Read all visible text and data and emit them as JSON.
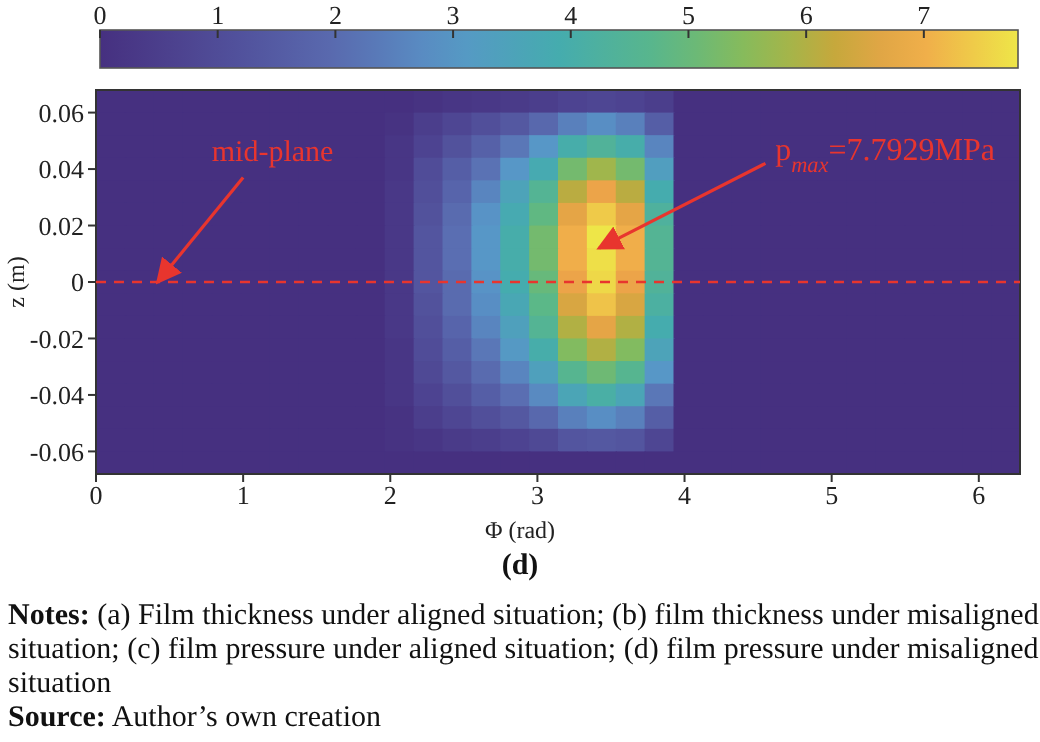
{
  "chart_data": {
    "type": "heatmap",
    "xlabel": "Φ (rad)",
    "ylabel": "z (m)",
    "xlim": [
      0,
      6.28
    ],
    "xticks": [
      0,
      1,
      2,
      3,
      4,
      5,
      6
    ],
    "ylim": [
      -0.068,
      0.068
    ],
    "yticks": [
      -0.06,
      -0.04,
      -0.02,
      0,
      0.02,
      0.04,
      0.06
    ],
    "clim": [
      0,
      7.8
    ],
    "cticks": [
      0,
      1,
      2,
      3,
      4,
      5,
      6,
      7
    ],
    "cells": [
      [
        0,
        0,
        0,
        0,
        0,
        0,
        0,
        0,
        0,
        0,
        0.0,
        0.1,
        0.2,
        0.3,
        0.4,
        0.5,
        0.7,
        0.8,
        0.7,
        0.5,
        0,
        0,
        0,
        0,
        0,
        0,
        0,
        0,
        0,
        0,
        0,
        0
      ],
      [
        0,
        0,
        0,
        0,
        0,
        0,
        0,
        0,
        0,
        0,
        0.1,
        0.5,
        0.8,
        1.1,
        1.4,
        1.9,
        2.5,
        2.8,
        2.5,
        1.6,
        0,
        0,
        0,
        0,
        0,
        0,
        0,
        0,
        0,
        0,
        0,
        0
      ],
      [
        0,
        0,
        0,
        0,
        0,
        0,
        0,
        0,
        0,
        0,
        0.2,
        0.7,
        1.2,
        1.7,
        2.3,
        3.0,
        4.0,
        4.4,
        4.0,
        2.6,
        0,
        0,
        0,
        0,
        0,
        0,
        0,
        0,
        0,
        0,
        0,
        0
      ],
      [
        0,
        0,
        0,
        0,
        0,
        0,
        0,
        0,
        0,
        0,
        0.2,
        1.0,
        1.6,
        2.2,
        3.0,
        3.8,
        5.2,
        5.8,
        5.2,
        3.3,
        0,
        0,
        0,
        0,
        0,
        0,
        0,
        0,
        0,
        0,
        0,
        0
      ],
      [
        0,
        0,
        0,
        0,
        0,
        0,
        0,
        0,
        0,
        0,
        0.3,
        1.1,
        1.8,
        2.6,
        3.5,
        4.5,
        6.1,
        6.8,
        6.1,
        3.9,
        0,
        0,
        0,
        0,
        0,
        0,
        0,
        0,
        0,
        0,
        0,
        0
      ],
      [
        0,
        0,
        0,
        0,
        0,
        0,
        0,
        0,
        0,
        0,
        0.3,
        1.2,
        2.0,
        2.9,
        3.8,
        4.9,
        6.7,
        7.4,
        6.7,
        4.3,
        0,
        0,
        0,
        0,
        0,
        0,
        0,
        0,
        0,
        0,
        0,
        0
      ],
      [
        0,
        0,
        0,
        0,
        0,
        0,
        0,
        0,
        0,
        0,
        0.3,
        1.3,
        2.1,
        3.0,
        4.0,
        5.2,
        7.0,
        7.8,
        7.0,
        4.5,
        0,
        0,
        0,
        0,
        0,
        0,
        0,
        0,
        0,
        0,
        0,
        0
      ],
      [
        0,
        0,
        0,
        0,
        0,
        0,
        0,
        0,
        0,
        0,
        0.3,
        1.3,
        2.1,
        3.0,
        4.0,
        5.2,
        7.0,
        7.7,
        7.0,
        4.5,
        0,
        0,
        0,
        0,
        0,
        0,
        0,
        0,
        0,
        0,
        0,
        0
      ],
      [
        0,
        0,
        0,
        0,
        0,
        0,
        0,
        0,
        0,
        0,
        0.3,
        1.3,
        2.0,
        2.9,
        3.9,
        5.0,
        6.8,
        7.6,
        6.8,
        4.4,
        0,
        0,
        0,
        0,
        0,
        0,
        0,
        0,
        0,
        0,
        0,
        0
      ],
      [
        0,
        0,
        0,
        0,
        0,
        0,
        0,
        0,
        0,
        0,
        0.3,
        1.2,
        2.0,
        2.8,
        3.7,
        4.8,
        6.5,
        7.3,
        6.5,
        4.2,
        0,
        0,
        0,
        0,
        0,
        0,
        0,
        0,
        0,
        0,
        0,
        0
      ],
      [
        0,
        0,
        0,
        0,
        0,
        0,
        0,
        0,
        0,
        0,
        0.3,
        1.1,
        1.8,
        2.6,
        3.4,
        4.5,
        6.0,
        6.7,
        6.0,
        3.9,
        0,
        0,
        0,
        0,
        0,
        0,
        0,
        0,
        0,
        0,
        0,
        0
      ],
      [
        0,
        0,
        0,
        0,
        0,
        0,
        0,
        0,
        0,
        0,
        0.2,
        1.0,
        1.6,
        2.3,
        3.1,
        4.0,
        5.4,
        6.0,
        5.4,
        3.5,
        0,
        0,
        0,
        0,
        0,
        0,
        0,
        0,
        0,
        0,
        0,
        0
      ],
      [
        0,
        0,
        0,
        0,
        0,
        0,
        0,
        0,
        0,
        0,
        0.2,
        0.9,
        1.4,
        2.0,
        2.6,
        3.4,
        4.6,
        5.1,
        4.6,
        3.0,
        0,
        0,
        0,
        0,
        0,
        0,
        0,
        0,
        0,
        0,
        0,
        0
      ],
      [
        0,
        0,
        0,
        0,
        0,
        0,
        0,
        0,
        0,
        0,
        0.2,
        0.7,
        1.1,
        1.6,
        2.1,
        2.7,
        3.6,
        4.1,
        3.6,
        2.3,
        0,
        0,
        0,
        0,
        0,
        0,
        0,
        0,
        0,
        0,
        0,
        0
      ],
      [
        0,
        0,
        0,
        0,
        0,
        0,
        0,
        0,
        0,
        0,
        0.1,
        0.5,
        0.8,
        1.1,
        1.4,
        1.9,
        2.5,
        2.8,
        2.5,
        1.6,
        0,
        0,
        0,
        0,
        0,
        0,
        0,
        0,
        0,
        0,
        0,
        0
      ],
      [
        0,
        0,
        0,
        0,
        0,
        0,
        0,
        0,
        0,
        0,
        0.1,
        0.2,
        0.4,
        0.5,
        0.7,
        0.9,
        1.3,
        1.4,
        1.3,
        0.8,
        0,
        0,
        0,
        0,
        0,
        0,
        0,
        0,
        0,
        0,
        0,
        0
      ],
      [
        0,
        0,
        0,
        0,
        0,
        0,
        0,
        0,
        0,
        0,
        0,
        0,
        0,
        0,
        0,
        0,
        0,
        0,
        0,
        0,
        0,
        0,
        0,
        0,
        0,
        0,
        0,
        0,
        0,
        0,
        0,
        0
      ]
    ],
    "ref_lines": [
      {
        "axis": "y",
        "value": 0,
        "label": "mid-plane",
        "color": "#e8352e",
        "line_style": "dashed"
      }
    ],
    "annotations": [
      "p$_{max}$=7.7929MPa",
      "(d)",
      "Notes: (a) Film thickness under aligned situation; (b) film thickness under misaligned situation; (c) film pressure under aligned situation; (d) film pressure under misaligned situation",
      "Source: Author’s own creation"
    ]
  }
}
